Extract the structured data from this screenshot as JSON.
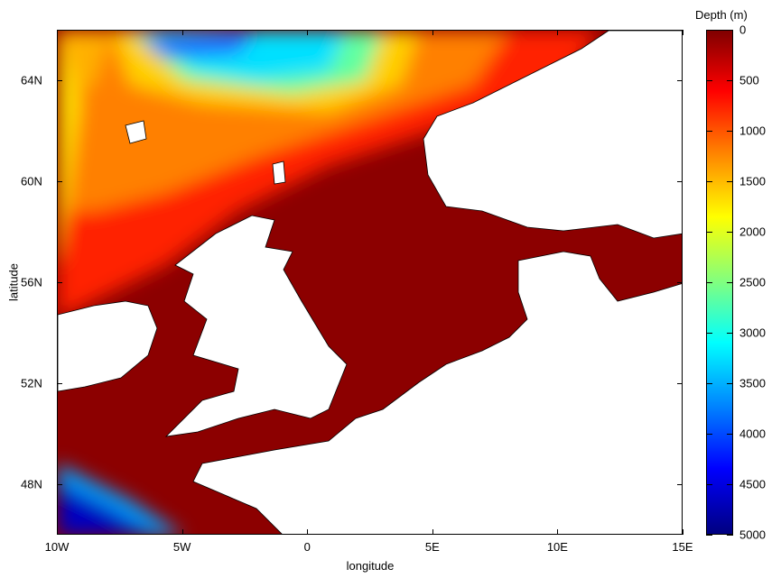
{
  "map": {
    "xlabel": "longitude",
    "ylabel": "latitude",
    "x_ticks": [
      {
        "value": -10,
        "label": "10W"
      },
      {
        "value": -5,
        "label": "5W"
      },
      {
        "value": 0,
        "label": "0"
      },
      {
        "value": 5,
        "label": "5E"
      },
      {
        "value": 10,
        "label": "10E"
      },
      {
        "value": 15,
        "label": "15E"
      }
    ],
    "y_ticks": [
      {
        "value": 48,
        "label": "48N"
      },
      {
        "value": 52,
        "label": "52N"
      },
      {
        "value": 56,
        "label": "56N"
      },
      {
        "value": 60,
        "label": "60N"
      },
      {
        "value": 64,
        "label": "64N"
      }
    ],
    "lon_range": [
      -10,
      15
    ],
    "lat_range": [
      46,
      66
    ]
  },
  "colorbar": {
    "title": "Depth (m)",
    "range": [
      0,
      5000
    ],
    "ticks": [
      "0",
      "500",
      "1000",
      "1500",
      "2000",
      "2500",
      "3000",
      "3500",
      "4000",
      "4500",
      "5000"
    ],
    "colormap": "jet (reversed, dark red = shallow)"
  },
  "colors": {
    "land": "#ffffff",
    "shallow": "#8c0000",
    "deep": "#000080"
  }
}
